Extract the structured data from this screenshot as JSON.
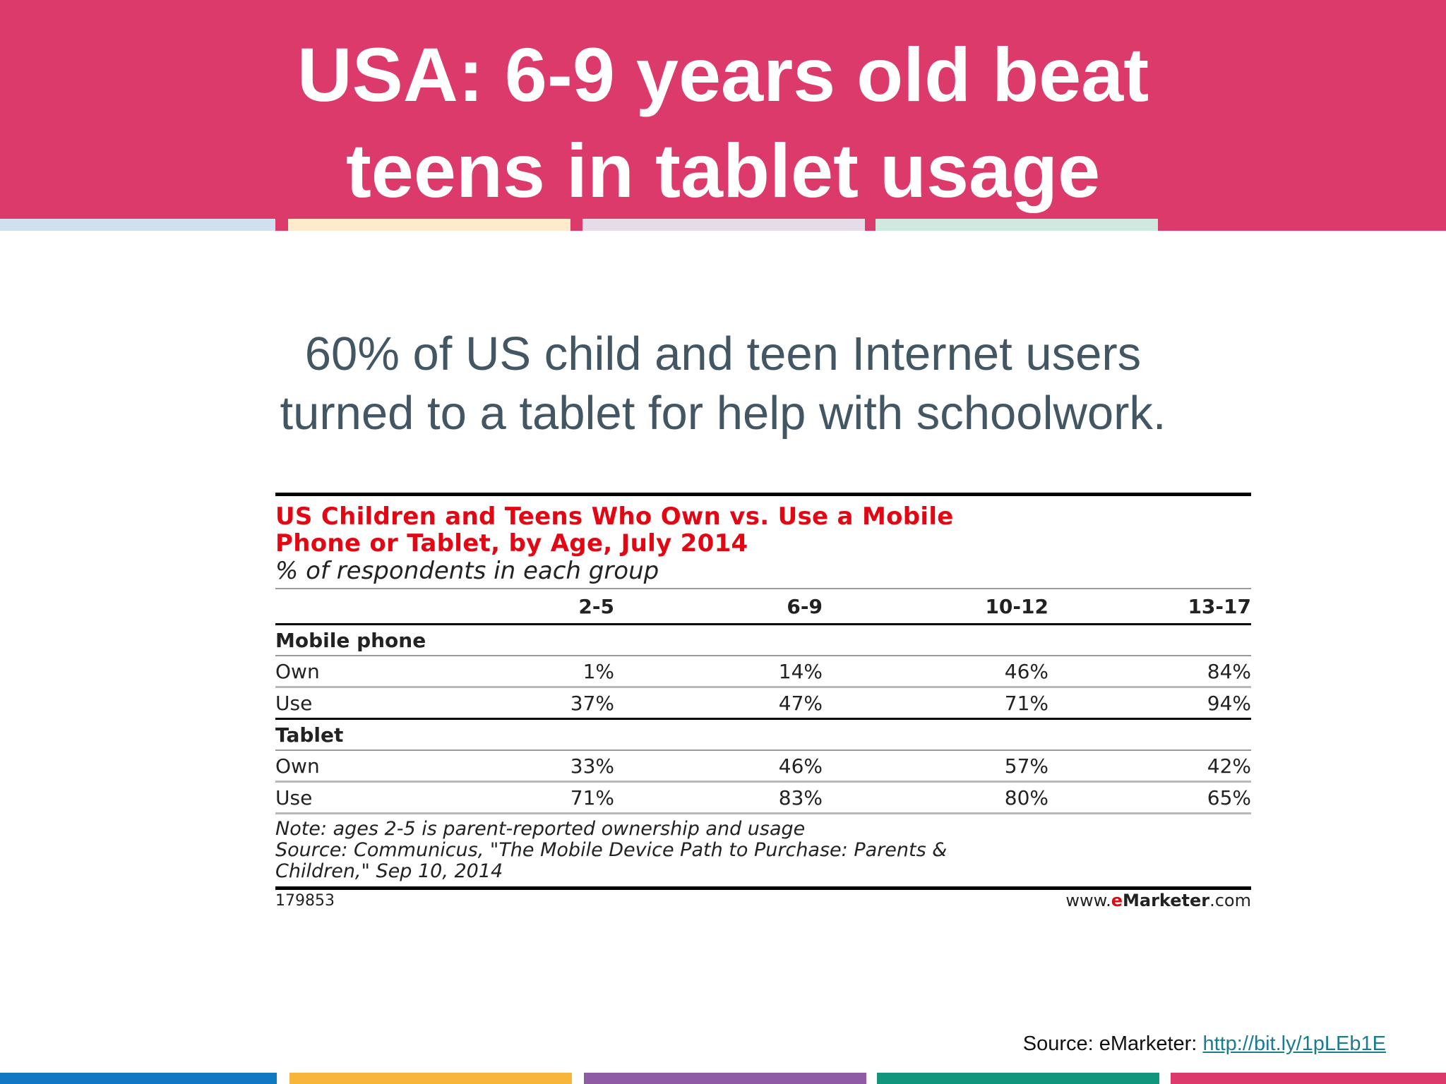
{
  "slide": {
    "title_lines": [
      "USA: 6-9 years old beat",
      "teens in tablet usage"
    ],
    "subtitle_lines": [
      "60% of US child and teen Internet users",
      "turned to a tablet for help with schoolwork."
    ],
    "colors": {
      "header": "#dc3a6b",
      "pastel": [
        "#cfe1f0",
        "#fdebcc",
        "#e6dbe6",
        "#cfe8e0"
      ],
      "bottom": [
        "#0f79c4",
        "#f7b53c",
        "#8f5ba4",
        "#11957c",
        "#dc3a6b"
      ],
      "subtitle_text": "#435663",
      "table_title": "#e30613"
    }
  },
  "figure": {
    "title_lines": [
      "US Children and Teens Who Own vs. Use a Mobile",
      "Phone or Tablet, by Age, July 2014"
    ],
    "subtitle": "% of respondents in each group",
    "columns": [
      "2-5",
      "6-9",
      "10-12",
      "13-17"
    ],
    "groups": [
      {
        "name": "Mobile phone",
        "rows": [
          {
            "label": "Own",
            "values": [
              "1%",
              "14%",
              "46%",
              "84%"
            ]
          },
          {
            "label": "Use",
            "values": [
              "37%",
              "47%",
              "71%",
              "94%"
            ]
          }
        ]
      },
      {
        "name": "Tablet",
        "rows": [
          {
            "label": "Own",
            "values": [
              "33%",
              "46%",
              "57%",
              "42%"
            ]
          },
          {
            "label": "Use",
            "values": [
              "71%",
              "83%",
              "80%",
              "65%"
            ]
          }
        ]
      }
    ],
    "note_lines": [
      "Note: ages 2-5 is parent-reported ownership and usage",
      "Source: Communicus, \"The Mobile Device Path to Purchase: Parents &",
      "Children,\" Sep 10, 2014"
    ],
    "figure_id": "179853",
    "brand": {
      "prefix": "www.",
      "e": "e",
      "name": "Marketer",
      "suffix": ".com"
    }
  },
  "source": {
    "label": "Source:  eMarketer:",
    "link_text": "http://bit.ly/1pLEb1E"
  }
}
